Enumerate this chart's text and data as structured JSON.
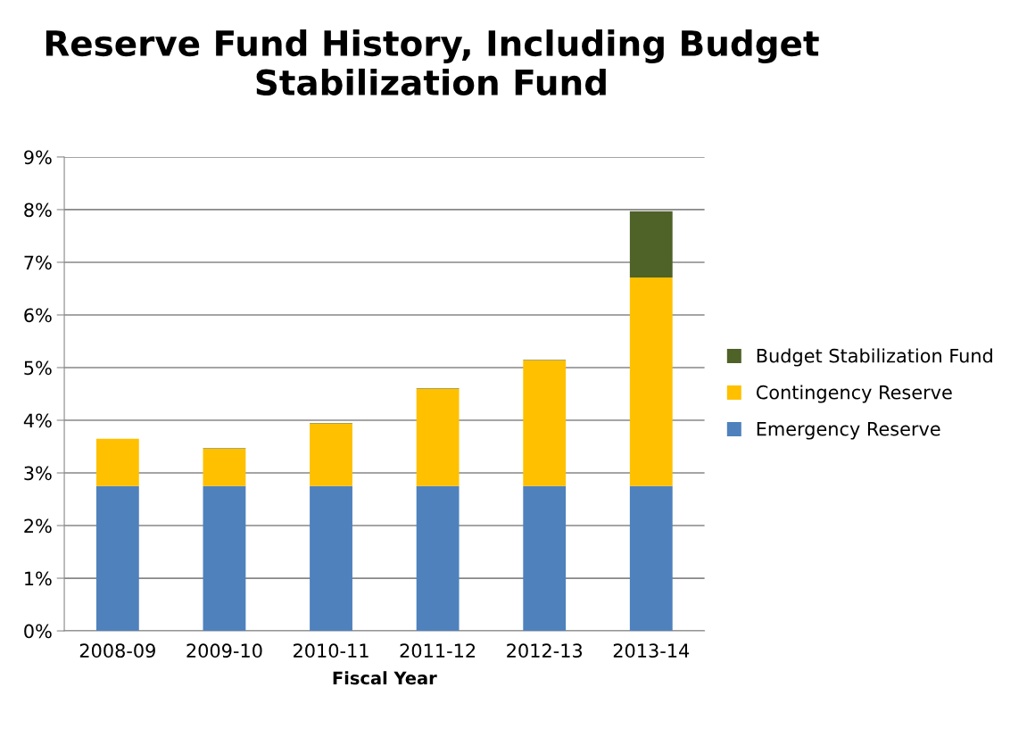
{
  "chart_data": {
    "type": "bar",
    "title": "Reserve Fund History, Including Budget\nStabilization Fund",
    "xlabel": "Fiscal Year",
    "categories": [
      "2008-09",
      "2009-10",
      "2010-11",
      "2011-12",
      "2012-13",
      "2013-14"
    ],
    "stacked": true,
    "series": [
      {
        "name": "Emergency Reserve",
        "color": "#4f81bd",
        "values": [
          2.75,
          2.75,
          2.75,
          2.75,
          2.75,
          2.75
        ]
      },
      {
        "name": "Contingency Reserve",
        "color": "#ffc000",
        "values": [
          0.9,
          0.71,
          1.19,
          1.85,
          2.39,
          3.96
        ]
      },
      {
        "name": "Budget Stabilization Fund",
        "color": "#4f6228",
        "values": [
          0,
          0.01,
          0.01,
          0.01,
          0.01,
          1.26
        ]
      }
    ],
    "ylim": [
      0,
      9
    ],
    "yticks": [
      {
        "value": 0,
        "label": "0%"
      },
      {
        "value": 1,
        "label": "1%"
      },
      {
        "value": 2,
        "label": "2%"
      },
      {
        "value": 3,
        "label": "3%"
      },
      {
        "value": 4,
        "label": "4%"
      },
      {
        "value": 5,
        "label": "5%"
      },
      {
        "value": 6,
        "label": "6%"
      },
      {
        "value": 7,
        "label": "7%"
      },
      {
        "value": 8,
        "label": "8%"
      },
      {
        "value": 9,
        "label": "9%"
      }
    ],
    "grid": "y",
    "legend": "right"
  }
}
